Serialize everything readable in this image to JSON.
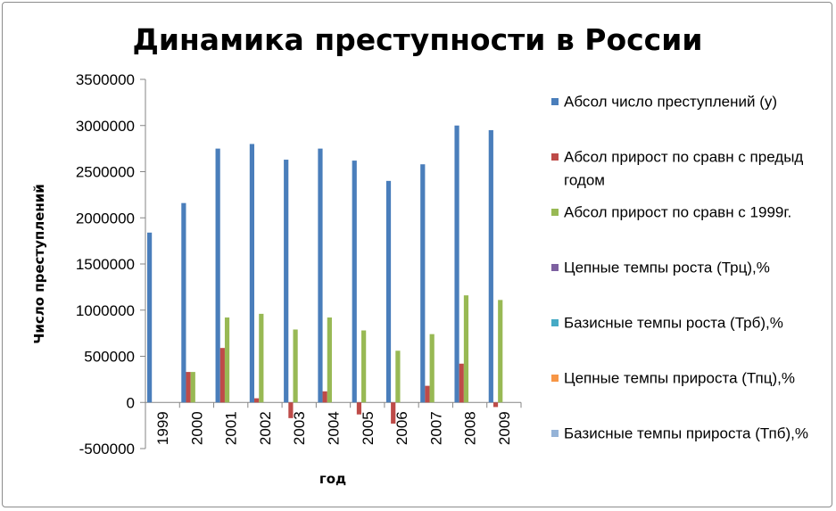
{
  "chart_data": {
    "type": "bar",
    "title": "Динамика преступности в России",
    "xlabel": "год",
    "ylabel": "Число преступлений",
    "categories": [
      "1999",
      "2000",
      "2001",
      "2002",
      "2003",
      "2004",
      "2005",
      "2006",
      "2007",
      "2008",
      "2009"
    ],
    "ylim": [
      -500000,
      3500000
    ],
    "yticks": [
      -500000,
      0,
      500000,
      1000000,
      1500000,
      2000000,
      2500000,
      3000000,
      3500000
    ],
    "ytick_labels": [
      "-500000",
      "0",
      "500000",
      "1000000",
      "1500000",
      "2000000",
      "2500000",
      "3000000",
      "3500000"
    ],
    "grid": false,
    "legend_position": "right",
    "series": [
      {
        "name": "Абсол число преступлений (у)",
        "color": "#4a7ebb",
        "values": [
          1840000,
          2160000,
          2750000,
          2800000,
          2630000,
          2750000,
          2620000,
          2400000,
          2580000,
          3000000,
          2950000
        ]
      },
      {
        "name": "Абсол прирост по сравн с предыд годом",
        "color": "#be4b48",
        "values": [
          0,
          330000,
          590000,
          45000,
          -170000,
          120000,
          -130000,
          -230000,
          180000,
          420000,
          -50000
        ]
      },
      {
        "name": "Абсол прирост по сравн с 1999г.",
        "color": "#98b954",
        "values": [
          0,
          330000,
          920000,
          960000,
          790000,
          920000,
          780000,
          560000,
          740000,
          1160000,
          1110000
        ]
      },
      {
        "name": "Цепные темпы роста (Трц),%",
        "color": "#7d60a0",
        "values": [
          0,
          0,
          0,
          0,
          0,
          0,
          0,
          0,
          0,
          0,
          0
        ]
      },
      {
        "name": "Базисные темпы роста (Трб),%",
        "color": "#46aac5",
        "values": [
          0,
          0,
          0,
          0,
          0,
          0,
          0,
          0,
          0,
          0,
          0
        ]
      },
      {
        "name": "Цепные темпы прироста (Тпц),%",
        "color": "#f79646",
        "values": [
          0,
          0,
          0,
          0,
          0,
          0,
          0,
          0,
          0,
          0,
          0
        ]
      },
      {
        "name": "Базисные темпы прироста (Тпб),%",
        "color": "#95b3d7",
        "values": [
          0,
          0,
          0,
          0,
          0,
          0,
          0,
          0,
          0,
          0,
          0
        ]
      }
    ]
  }
}
